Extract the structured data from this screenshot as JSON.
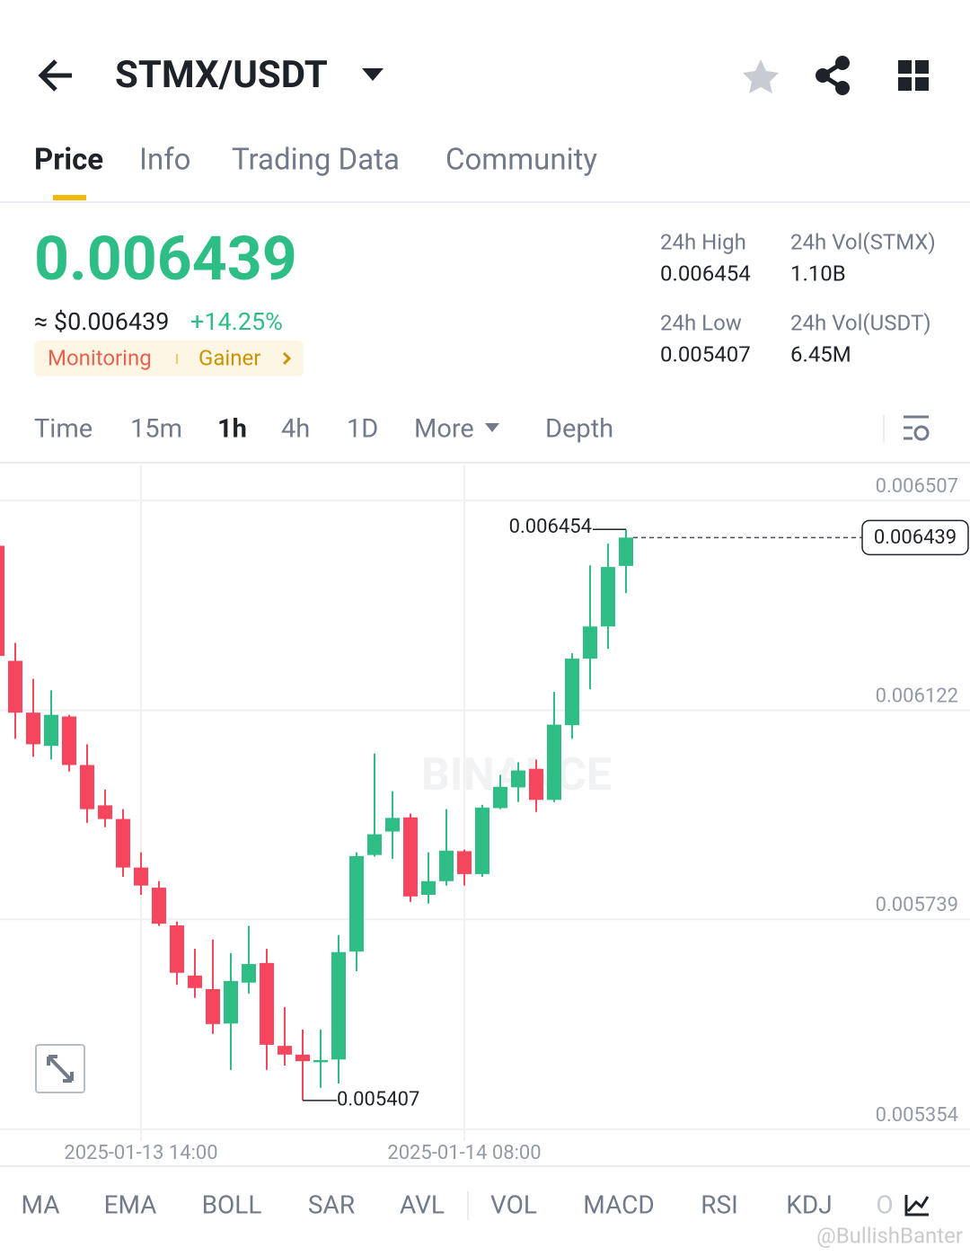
{
  "header": {
    "title": "STMX/USDT"
  },
  "tabs": [
    "Price",
    "Info",
    "Trading Data",
    "Community"
  ],
  "ticker": {
    "price": "0.006439",
    "approx": "≈ $0.006439",
    "change": "+14.25%",
    "tags": [
      "Monitoring",
      "Gainer"
    ],
    "stats": [
      {
        "label": "24h High",
        "value": "0.006454"
      },
      {
        "label": "24h Vol(STMX)",
        "value": "1.10B"
      },
      {
        "label": "24h Low",
        "value": "0.005407"
      },
      {
        "label": "24h Vol(USDT)",
        "value": "6.45M"
      }
    ]
  },
  "timeframes": [
    "Time",
    "15m",
    "1h",
    "4h",
    "1D",
    "More",
    "Depth"
  ],
  "indicators": [
    "MA",
    "EMA",
    "BOLL",
    "SAR",
    "AVL",
    "VOL",
    "MACD",
    "RSI",
    "KDJ",
    "O"
  ],
  "watermark": "@BullishBanter",
  "chart_data": {
    "type": "candlestick",
    "watermark": "BINANCE",
    "categories": [
      null,
      null,
      null,
      null,
      null,
      null,
      null,
      null,
      "2025-01-13 14:00",
      null,
      null,
      null,
      null,
      null,
      null,
      null,
      null,
      null,
      null,
      null,
      null,
      null,
      null,
      null,
      null,
      null,
      "2025-01-14 08:00",
      null,
      null,
      null,
      null,
      null,
      null,
      null,
      null,
      null
    ],
    "open": [
      0.006424,
      0.006213,
      0.006118,
      0.006057,
      0.006111,
      0.006022,
      0.005948,
      0.005923,
      0.005834,
      0.005797,
      0.005728,
      0.005636,
      0.005611,
      0.005548,
      0.005623,
      0.005659,
      0.005507,
      0.005491,
      0.005477,
      0.005482,
      0.00568,
      0.005857,
      0.0059,
      0.005926,
      0.005784,
      0.005809,
      0.005864,
      0.005822,
      0.005943,
      0.005981,
      0.006015,
      0.005958,
      0.006095,
      0.006217,
      0.006276,
      0.006387
    ],
    "high": [
      0.006436,
      0.006246,
      0.00618,
      0.006159,
      0.006114,
      0.00606,
      0.005977,
      0.005941,
      0.005862,
      0.005809,
      0.005735,
      0.005685,
      0.005702,
      0.005677,
      0.005727,
      0.005685,
      0.005578,
      0.005537,
      0.005537,
      0.00571,
      0.005862,
      0.006043,
      0.005974,
      0.005933,
      0.005862,
      0.005941,
      0.005867,
      0.005949,
      0.006004,
      0.006027,
      0.006032,
      0.006156,
      0.006227,
      0.006388,
      0.006428,
      0.006454
    ],
    "low": [
      0.006213,
      0.00607,
      0.006037,
      0.006032,
      0.00601,
      0.005916,
      0.005908,
      0.005817,
      0.005784,
      0.005727,
      0.005619,
      0.005595,
      0.005529,
      0.005463,
      0.005603,
      0.005463,
      0.005471,
      0.005407,
      0.00543,
      0.005438,
      0.005644,
      0.005854,
      0.00585,
      0.005771,
      0.005768,
      0.005801,
      0.005801,
      0.005817,
      0.005941,
      0.005954,
      0.005936,
      0.005954,
      0.00607,
      0.006161,
      0.006235,
      0.006337
    ],
    "close": [
      0.006222,
      0.006118,
      0.00606,
      0.006114,
      0.006022,
      0.005941,
      0.005923,
      0.005834,
      0.005801,
      0.005731,
      0.005641,
      0.005613,
      0.005547,
      0.005626,
      0.005657,
      0.005509,
      0.005491,
      0.005479,
      0.005481,
      0.005679,
      0.005855,
      0.005895,
      0.005925,
      0.005781,
      0.005809,
      0.005865,
      0.005822,
      0.005944,
      0.005982,
      0.006012,
      0.005958,
      0.006096,
      0.006217,
      0.006276,
      0.006385,
      0.006439
    ],
    "up_color": "#2ebd85",
    "down_color": "#f6465d",
    "ylim": [
      0.005354,
      0.006573
    ],
    "yticks": [
      0.006507,
      0.006122,
      0.005739,
      0.005354
    ],
    "grid": true,
    "max_marker": 0.006454,
    "min_marker": 0.005407,
    "last_price": 0.006439
  }
}
